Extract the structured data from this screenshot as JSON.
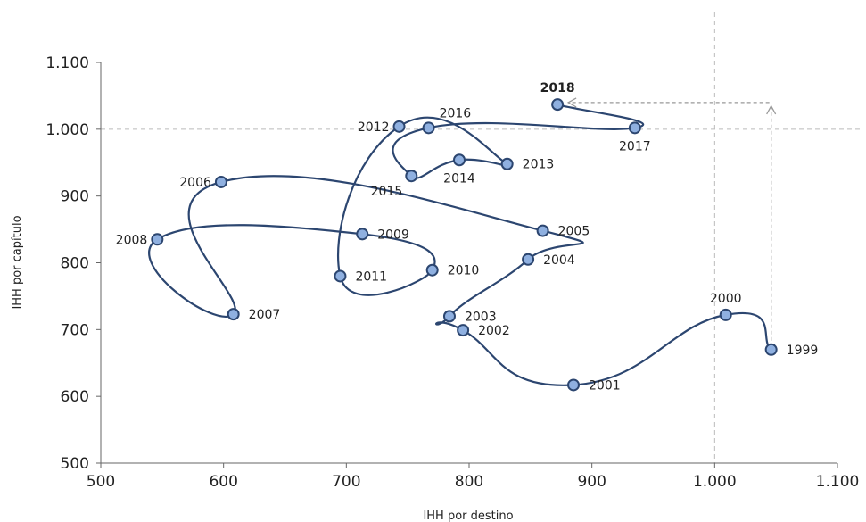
{
  "chart_data": {
    "type": "scatter",
    "xlabel": "IHH por destino",
    "ylabel": "IHH por capítulo",
    "xlim": [
      500,
      1100
    ],
    "ylim": [
      500,
      1100
    ],
    "xticks": [
      {
        "value": 500,
        "label": "500"
      },
      {
        "value": 600,
        "label": "600"
      },
      {
        "value": 700,
        "label": "700"
      },
      {
        "value": 800,
        "label": "800"
      },
      {
        "value": 900,
        "label": "900"
      },
      {
        "value": 1000,
        "label": "1.000"
      },
      {
        "value": 1100,
        "label": "1.100"
      }
    ],
    "yticks": [
      {
        "value": 500,
        "label": "500"
      },
      {
        "value": 600,
        "label": "600"
      },
      {
        "value": 700,
        "label": "700"
      },
      {
        "value": 800,
        "label": "800"
      },
      {
        "value": 900,
        "label": "900"
      },
      {
        "value": 1000,
        "label": "1.000"
      },
      {
        "value": 1100,
        "label": "1.100"
      }
    ],
    "reference_lines": {
      "x": 1000,
      "y": 1000
    },
    "points": [
      {
        "year": "1999",
        "x": 1046,
        "y": 670,
        "label_pos": "right"
      },
      {
        "year": "2000",
        "x": 1009,
        "y": 722,
        "label_pos": "top"
      },
      {
        "year": "2001",
        "x": 885,
        "y": 617,
        "label_pos": "right"
      },
      {
        "year": "2002",
        "x": 795,
        "y": 699,
        "label_pos": "right"
      },
      {
        "year": "2003",
        "x": 784,
        "y": 720,
        "label_pos": "right"
      },
      {
        "year": "2004",
        "x": 848,
        "y": 805,
        "label_pos": "right"
      },
      {
        "year": "2005",
        "x": 860,
        "y": 848,
        "label_pos": "right"
      },
      {
        "year": "2006",
        "x": 598,
        "y": 921,
        "label_pos": "left"
      },
      {
        "year": "2007",
        "x": 608,
        "y": 723,
        "label_pos": "right"
      },
      {
        "year": "2008",
        "x": 546,
        "y": 835,
        "label_pos": "left"
      },
      {
        "year": "2009",
        "x": 713,
        "y": 843,
        "label_pos": "right"
      },
      {
        "year": "2010",
        "x": 770,
        "y": 789,
        "label_pos": "right"
      },
      {
        "year": "2011",
        "x": 695,
        "y": 780,
        "label_pos": "right"
      },
      {
        "year": "2012",
        "x": 743,
        "y": 1004,
        "label_pos": "left"
      },
      {
        "year": "2013",
        "x": 831,
        "y": 948,
        "label_pos": "right"
      },
      {
        "year": "2014",
        "x": 792,
        "y": 954,
        "label_pos": "bottom"
      },
      {
        "year": "2015",
        "x": 753,
        "y": 930,
        "label_pos": "bottom-left"
      },
      {
        "year": "2016",
        "x": 767,
        "y": 1002,
        "label_pos": "top-right"
      },
      {
        "year": "2017",
        "x": 935,
        "y": 1002,
        "label_pos": "bottom"
      },
      {
        "year": "2018",
        "x": 872,
        "y": 1037,
        "label_pos": "top",
        "bold": true
      }
    ],
    "annotation": {
      "type": "dashed-arrow",
      "from": {
        "x": 1046,
        "y": 670
      },
      "corner": {
        "x": 1046,
        "y": 1040
      },
      "to": {
        "x": 872,
        "y": 1040
      }
    },
    "colors": {
      "line": "#2c4670",
      "marker_fill": "#8fb0e0",
      "marker_stroke": "#2c4670",
      "reference": "#bbbbbb",
      "arrow": "#999999",
      "axis": "#666666"
    }
  }
}
